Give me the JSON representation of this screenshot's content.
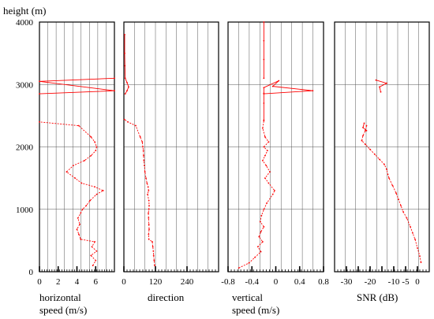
{
  "figure": {
    "y_axis_title": "height (m)",
    "y_ticks": [
      "0",
      "1000",
      "2000",
      "3000",
      "4000"
    ]
  },
  "colors": {
    "profile": "#ff0000",
    "grid": "#000000"
  },
  "chart_data": [
    {
      "type": "line",
      "xlabel": "horizontal speed (m/s)",
      "ylabel": "height (m)",
      "xlim": [
        0,
        8
      ],
      "ylim": [
        0,
        4000
      ],
      "x_ticks": [
        0,
        2,
        4,
        6
      ],
      "x_tick_labels": [
        "0",
        "2",
        "4",
        "6"
      ],
      "grid": true,
      "series": [
        {
          "segments": [
            {
              "x": [
                5.7,
                6.0,
                5.5,
                6.1,
                5.6,
                5.9,
                4.4,
                4.2,
                4.0,
                4.3,
                4.1,
                4.4,
                4.6,
                5.0,
                5.4,
                6.1,
                6.8,
                5.9,
                4.5,
                3.8,
                2.9,
                3.6,
                4.8,
                5.5,
                6.0,
                6.1,
                5.9,
                5.5,
                4.2,
                0.0
              ],
              "y": [
                100,
                180,
                260,
                330,
                400,
                480,
                520,
                600,
                680,
                760,
                860,
                940,
                1000,
                1060,
                1140,
                1240,
                1300,
                1360,
                1420,
                1500,
                1600,
                1700,
                1780,
                1860,
                1940,
                2000,
                2080,
                2160,
                2340,
                2400
              ]
            },
            {
              "x": [
                0.0,
                8.0,
                0.0,
                8.0
              ],
              "y": [
                2850,
                2900,
                3050,
                3100
              ]
            }
          ]
        }
      ]
    },
    {
      "type": "line",
      "xlabel": "direction",
      "ylabel": "height (m)",
      "xlim": [
        0,
        360
      ],
      "ylim": [
        0,
        4000
      ],
      "x_ticks": [
        0,
        120,
        240
      ],
      "x_tick_labels": [
        "0",
        "120",
        "240"
      ],
      "grid": true,
      "series": [
        {
          "segments": [
            {
              "x": [
                117,
                115,
                113,
                112,
                110,
                108,
                95,
                94,
                96,
                95,
                94,
                93,
                95,
                96,
                95,
                90,
                94,
                92,
                88,
                84,
                80,
                78,
                76,
                75,
                74,
                72,
                70,
                62,
                45,
                15,
                2
              ],
              "y": [
                100,
                180,
                260,
                330,
                400,
                480,
                520,
                600,
                680,
                760,
                860,
                940,
                1000,
                1060,
                1140,
                1240,
                1300,
                1360,
                1420,
                1500,
                1600,
                1700,
                1780,
                1860,
                1940,
                2000,
                2080,
                2160,
                2340,
                2400,
                2440
              ]
            },
            {
              "x": [
                5,
                12,
                18,
                12,
                5,
                4,
                3,
                3
              ],
              "y": [
                2850,
                2900,
                2960,
                3030,
                3100,
                3300,
                3500,
                3800
              ]
            }
          ]
        }
      ]
    },
    {
      "type": "line",
      "xlabel": "vertical speed (m/s)",
      "ylabel": "height (m)",
      "xlim": [
        -0.8,
        0.8
      ],
      "ylim": [
        0,
        4000
      ],
      "x_ticks": [
        -0.8,
        -0.4,
        0,
        0.4,
        0.8
      ],
      "x_tick_labels": [
        "-0.8",
        "-0.4",
        "0",
        "0.4",
        "0.8"
      ],
      "grid": true,
      "series": [
        {
          "segments": [
            {
              "x": [
                -0.62,
                -0.45,
                -0.35,
                -0.25,
                -0.3,
                -0.22,
                -0.28,
                -0.25,
                -0.2,
                -0.26,
                -0.24,
                -0.2,
                -0.15,
                -0.05,
                -0.02,
                -0.12,
                -0.18,
                -0.1,
                -0.16,
                -0.22,
                -0.18,
                -0.14,
                -0.2,
                -0.12,
                -0.18,
                -0.22,
                -0.2
              ],
              "y": [
                60,
                140,
                230,
                320,
                400,
                480,
                560,
                640,
                720,
                800,
                900,
                1000,
                1100,
                1240,
                1300,
                1420,
                1500,
                1600,
                1700,
                1780,
                1860,
                1940,
                2000,
                2080,
                2160,
                2300,
                2420
              ]
            },
            {
              "x": [
                -0.2,
                -0.2,
                -0.2,
                -0.2,
                0.05,
                -0.05,
                0.62,
                -0.2
              ],
              "y": [
                2430,
                2700,
                2860,
                2950,
                3060,
                2970,
                2900,
                2850
              ]
            },
            {
              "x": [
                -0.2,
                -0.2,
                -0.2,
                -0.2
              ],
              "y": [
                3100,
                3400,
                3700,
                4000
              ]
            }
          ]
        }
      ]
    },
    {
      "type": "line",
      "xlabel": "SNR (dB)",
      "ylabel": "height (m)",
      "xlim": [
        -35,
        5
      ],
      "ylim": [
        0,
        4000
      ],
      "x_ticks": [
        -30,
        -20,
        -10,
        0
      ],
      "x_tick_labels": [
        "-30",
        "-20",
        "-10",
        "0"
      ],
      "x_minor_ticks": [
        -25,
        -15,
        -5
      ],
      "x_minor_tick_labels": [
        "",
        "",
        "-5"
      ],
      "grid": true,
      "series": [
        {
          "segments": [
            {
              "x": [
                1.5,
                1.0,
                0.0,
                -1.0,
                -2.0,
                -3.0,
                -4.5,
                -6.0,
                -7.0,
                -8.0,
                -9.0,
                -10.5,
                -12.0,
                -12.5,
                -13.0,
                -14.0,
                -16.0,
                -18.0,
                -20.0,
                -22.0,
                -23.5,
                -23.0,
                -22.0,
                -21.5
              ],
              "y": [
                150,
                250,
                380,
                520,
                620,
                720,
                860,
                960,
                1060,
                1160,
                1260,
                1380,
                1500,
                1560,
                1640,
                1720,
                1800,
                1880,
                1960,
                2040,
                2100,
                2180,
                2260,
                2340
              ]
            },
            {
              "x": [
                -21.5,
                -23.0,
                -22.5
              ],
              "y": [
                2260,
                2310,
                2380
              ]
            },
            {
              "x": [
                -15.5,
                -16.0,
                -13.0,
                -17.5
              ],
              "y": [
                2880,
                2960,
                3020,
                3070
              ]
            }
          ]
        }
      ]
    }
  ]
}
